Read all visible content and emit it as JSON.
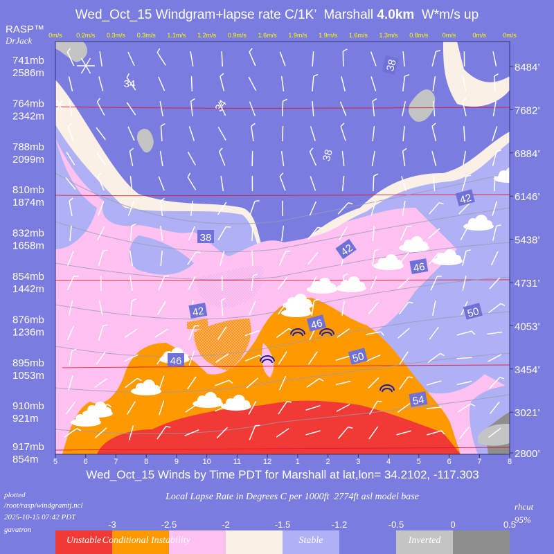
{
  "chart_data": {
    "type": "heatmap",
    "title": {
      "prefix": "Wed_Oct_15 Windgram+lapse rate C/1K’  Marshall ",
      "bold": "4.0km",
      "suffix": "  W*m/s up"
    },
    "brand": "RASP™",
    "author": "DrJack",
    "xlabel": "Wed_Oct_15 Winds by Time PDT for Marshall at lat,lon= 34.2102, -117.303",
    "x_ticks": [
      "5",
      "6",
      "7",
      "8",
      "9",
      "10",
      "11",
      "12",
      "1",
      "2",
      "3",
      "4",
      "5",
      "6",
      "7",
      "8"
    ],
    "wstar": [
      "0m/s",
      "0.2m/s",
      "0.3m/s",
      "0.3m/s",
      "1.1m/s",
      "1.2m/s",
      "0.9m/s",
      "1.6m/s",
      "1.9m/s",
      "1.9m/s",
      "1.6m/s",
      "1.3m/s",
      "0.8m/s",
      "0m/s",
      "0m/s",
      "0m/s"
    ],
    "left_levels": [
      {
        "mb": "741mb",
        "m": "2586m",
        "ft": "8484’"
      },
      {
        "mb": "764mb",
        "m": "2342m",
        "ft": "7682’"
      },
      {
        "mb": "788mb",
        "m": "2099m",
        "ft": "6884’"
      },
      {
        "mb": "810mb",
        "m": "1874m",
        "ft": "6146’"
      },
      {
        "mb": "832mb",
        "m": "1658m",
        "ft": "5438’"
      },
      {
        "mb": "854mb",
        "m": "1442m",
        "ft": "4731’"
      },
      {
        "mb": "876mb",
        "m": "1236m",
        "ft": "4053’"
      },
      {
        "mb": "895mb",
        "m": "1053m",
        "ft": "3454’"
      },
      {
        "mb": "910mb",
        "m": "921m",
        "ft": "3021’"
      },
      {
        "mb": "917mb",
        "m": "854m",
        "ft": "2800’"
      }
    ],
    "isotherm_labels": [
      "34",
      "34",
      "38",
      "38",
      "38",
      "42",
      "42",
      "42",
      "46",
      "46",
      "46",
      "50",
      "50",
      "54"
    ],
    "footer": {
      "plotted": "plotted",
      "path": "/root/rasp/windgramtj.ncl",
      "timestamp": "2025-10-15 07:42 PDT",
      "host": "gavatron",
      "legend_title": "Local Lapse Rate in Degrees C per 1000ft  2774ft asl model base",
      "rhcut": "rhcut",
      "rhcut_value": "95%"
    },
    "legend": {
      "ticks": [
        "-3",
        "-2.5",
        "-2",
        "-1.5",
        "-1.2",
        "-0.5",
        "0",
        "0.5"
      ],
      "segments": [
        {
          "label": "Unstable",
          "color": "#f13a35"
        },
        {
          "label": "Conditional Instability",
          "color": "#ff9900"
        },
        {
          "label": "",
          "color": "#ffc2f0"
        },
        {
          "label": "",
          "color": "#fbf0e6"
        },
        {
          "label": "Stable",
          "color": "#b0b0f5"
        },
        {
          "label": "",
          "color": "#7b7ce0"
        },
        {
          "label": "Inverted",
          "color": "#c4c4c4"
        },
        {
          "label": "",
          "color": "#8e8e8e"
        }
      ]
    },
    "colors": {
      "background": "#7b7ce0",
      "unstable": "#f13a35",
      "conditional": "#ff9900",
      "pink": "#ffc2f0",
      "cream": "#fbf0e6",
      "stable_light": "#b0b0f5",
      "stable": "#7b7ce0",
      "inverted": "#c4c4c4",
      "wstar_text": "#ffff00"
    }
  }
}
